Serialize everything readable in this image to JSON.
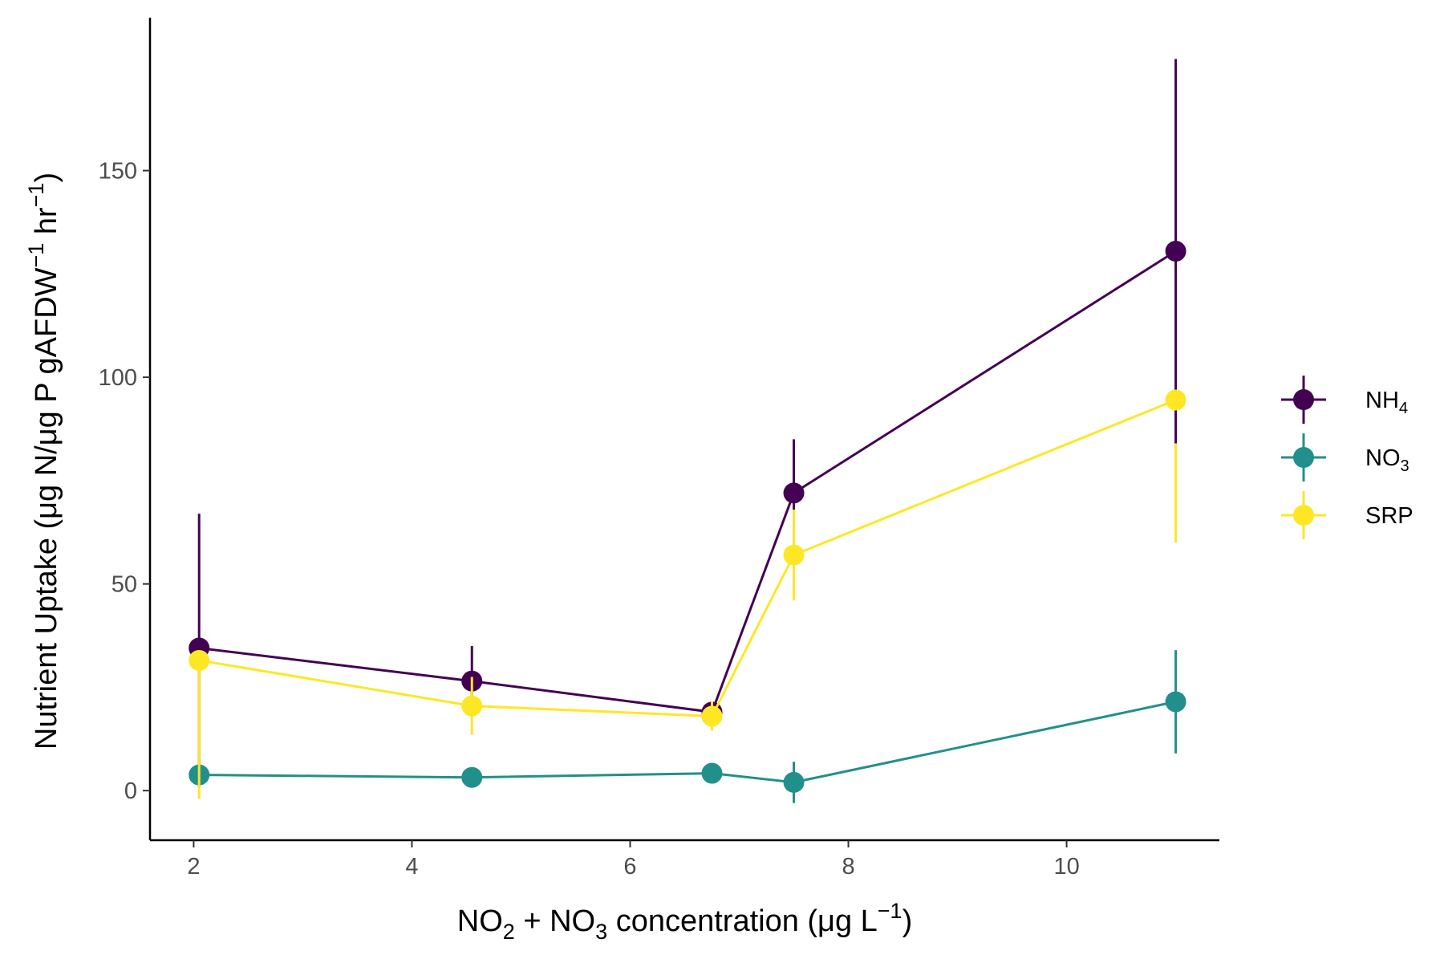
{
  "chart_data": {
    "type": "line",
    "xlabel": {
      "parts": [
        {
          "text": "NO"
        },
        {
          "text": "2",
          "sub": true
        },
        {
          "text": " + NO"
        },
        {
          "text": "3",
          "sub": true
        },
        {
          "text": " concentration (μg L"
        },
        {
          "text": "−1",
          "sup": true
        },
        {
          "text": ")"
        }
      ]
    },
    "ylabel": {
      "parts": [
        {
          "text": "Nutrient Uptake (μg N/μg P gAFDW"
        },
        {
          "text": "−1",
          "sup": true
        },
        {
          "text": " hr"
        },
        {
          "text": "−1",
          "sup": true
        },
        {
          "text": ")"
        }
      ]
    },
    "xlim": [
      1.6,
      11.4
    ],
    "ylim": [
      -12,
      187
    ],
    "x_ticks": [
      {
        "value": 2,
        "label": "2"
      },
      {
        "value": 4,
        "label": "4"
      },
      {
        "value": 6,
        "label": "6"
      },
      {
        "value": 8,
        "label": "8"
      },
      {
        "value": 10,
        "label": "10"
      }
    ],
    "y_ticks": [
      {
        "value": 0,
        "label": "0"
      },
      {
        "value": 50,
        "label": "50"
      },
      {
        "value": 100,
        "label": "100"
      },
      {
        "value": 150,
        "label": "150"
      }
    ],
    "grid": false,
    "legend_position": "right",
    "series": [
      {
        "name": "NH4",
        "legend_parts": [
          {
            "text": "NH"
          },
          {
            "text": "4",
            "sub": true
          }
        ],
        "color": "#440154",
        "points": [
          {
            "x": 2.05,
            "y": 34.5,
            "ymin": 2,
            "ymax": 67
          },
          {
            "x": 4.55,
            "y": 26.5,
            "ymin": 18,
            "ymax": 35
          },
          {
            "x": 6.75,
            "y": 19,
            "ymin": 16,
            "ymax": 21
          },
          {
            "x": 7.5,
            "y": 72,
            "ymin": 59,
            "ymax": 85
          },
          {
            "x": 11.0,
            "y": 130.5,
            "ymin": 84,
            "ymax": 177
          }
        ]
      },
      {
        "name": "NO3",
        "legend_parts": [
          {
            "text": "NO"
          },
          {
            "text": "3",
            "sub": true
          }
        ],
        "color": "#21908C",
        "points": [
          {
            "x": 2.05,
            "y": 3.8,
            "ymin": 1,
            "ymax": 7
          },
          {
            "x": 4.55,
            "y": 3.2,
            "ymin": 1,
            "ymax": 5
          },
          {
            "x": 6.75,
            "y": 4.2,
            "ymin": 2,
            "ymax": 6
          },
          {
            "x": 7.5,
            "y": 2.0,
            "ymin": -3,
            "ymax": 7
          },
          {
            "x": 11.0,
            "y": 21.5,
            "ymin": 9,
            "ymax": 34
          }
        ]
      },
      {
        "name": "SRP",
        "legend_parts": [
          {
            "text": "SRP"
          }
        ],
        "color": "#FDE725",
        "points": [
          {
            "x": 2.05,
            "y": 31.5,
            "ymin": -2,
            "ymax": 33
          },
          {
            "x": 4.55,
            "y": 20.5,
            "ymin": 13.5,
            "ymax": 27.5
          },
          {
            "x": 6.75,
            "y": 18,
            "ymin": 14.5,
            "ymax": 21.5
          },
          {
            "x": 7.5,
            "y": 57,
            "ymin": 46,
            "ymax": 68
          },
          {
            "x": 11.0,
            "y": 94.5,
            "ymin": 60,
            "ymax": 84
          }
        ]
      }
    ]
  }
}
